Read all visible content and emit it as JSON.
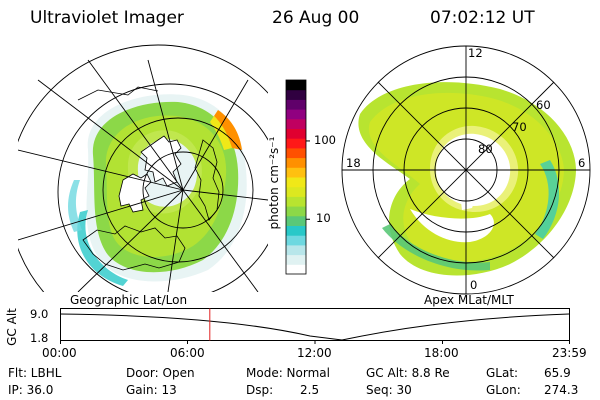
{
  "header": {
    "title": "Ultraviolet Imager",
    "date": "26 Aug 00",
    "time": "07:02:12 UT"
  },
  "colorbar": {
    "unit_label": "photon cm⁻²s⁻¹",
    "tick_labels": [
      "100",
      "10"
    ],
    "tick_values": [
      100,
      10
    ],
    "range": [
      2,
      600
    ],
    "colors": [
      "#ffffff",
      "#e0f2f2",
      "#b8e6ea",
      "#6ed8e0",
      "#28c8c8",
      "#5ac878",
      "#8cd848",
      "#b8e430",
      "#dce820",
      "#f0e818",
      "#ffc010",
      "#ff9000",
      "#ff5000",
      "#ff1818",
      "#e00030",
      "#c00060",
      "#900080",
      "#60006a",
      "#300040",
      "#000000"
    ]
  },
  "left_map": {
    "label": "Geographic Lat/Lon"
  },
  "right_map": {
    "label": "Apex MLat/MLT",
    "lat_labels": [
      "80",
      "70",
      "60"
    ],
    "mlt_labels": [
      "12",
      "18",
      "6",
      "0"
    ]
  },
  "altitude_plot": {
    "ylabel": "GC Alt",
    "ytick_labels": [
      "9.0",
      "1.8"
    ],
    "xtick_labels": [
      "00:00",
      "06:00",
      "12:00",
      "18:00",
      "23:59"
    ],
    "current_time_hours": 7.04
  },
  "status": {
    "flt": "Flt: LBHL",
    "ip": "IP: 36.0",
    "door": "Door: Open",
    "gain": "Gain: 13",
    "mode": "Mode: Normal",
    "dsp_label": "Dsp:",
    "dsp_value": "2.5",
    "gc_alt": "GC Alt: 8.8 Re",
    "seq": "Seq: 30",
    "glat_label": "GLat:",
    "glat_value": "65.9",
    "glon_label": "GLon:",
    "glon_value": "274.3"
  }
}
